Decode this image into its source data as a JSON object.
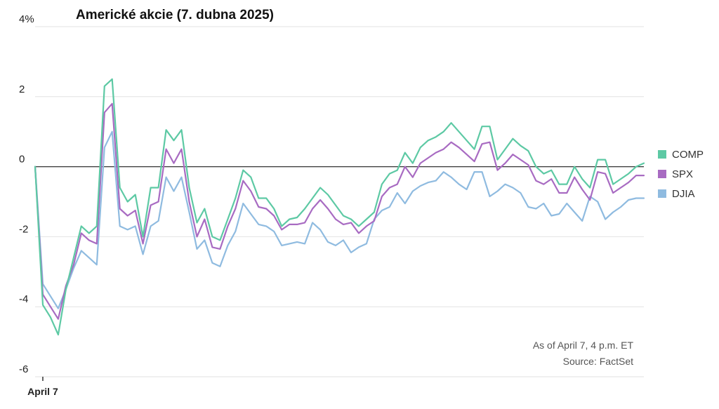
{
  "chart_data": {
    "type": "line",
    "title": "Americké akcie (7. dubna 2025)",
    "ylim": [
      -6,
      4
    ],
    "yticks": [
      4,
      2,
      0,
      -2,
      -4,
      -6
    ],
    "ytick_labels": [
      "4%",
      "2",
      "0",
      "-2",
      "-4",
      "-6"
    ],
    "x_label_text": "April 7",
    "x_label_index": 1,
    "grid": true,
    "legend": "right",
    "zero_line": true,
    "series": [
      {
        "name": "COMP",
        "color": "#5dc9a4",
        "values": [
          0,
          -3.95,
          -4.3,
          -4.8,
          -3.5,
          -2.6,
          -1.7,
          -1.9,
          -1.7,
          2.3,
          2.5,
          -0.6,
          -1.0,
          -0.8,
          -2.0,
          -0.6,
          -0.6,
          1.05,
          0.75,
          1.05,
          -0.6,
          -1.6,
          -1.2,
          -2.0,
          -2.1,
          -1.5,
          -0.9,
          -0.1,
          -0.3,
          -0.9,
          -0.9,
          -1.2,
          -1.7,
          -1.5,
          -1.45,
          -1.2,
          -0.9,
          -0.6,
          -0.8,
          -1.1,
          -1.4,
          -1.5,
          -1.7,
          -1.5,
          -1.3,
          -0.5,
          -0.2,
          -0.1,
          0.4,
          0.1,
          0.55,
          0.75,
          0.85,
          1.0,
          1.25,
          1.0,
          0.75,
          0.5,
          1.15,
          1.15,
          0.2,
          0.5,
          0.8,
          0.6,
          0.45,
          0.0,
          -0.2,
          -0.1,
          -0.5,
          -0.5,
          0.0,
          -0.35,
          -0.6,
          0.2,
          0.2,
          -0.5,
          -0.35,
          -0.2,
          0.0,
          0.1
        ]
      },
      {
        "name": "SPX",
        "color": "#a86bc2",
        "values": [
          0,
          -3.65,
          -4.0,
          -4.35,
          -3.4,
          -2.8,
          -1.9,
          -2.1,
          -2.2,
          1.55,
          1.8,
          -1.2,
          -1.4,
          -1.25,
          -2.2,
          -1.1,
          -1.0,
          0.5,
          0.1,
          0.5,
          -1.0,
          -2.0,
          -1.5,
          -2.3,
          -2.35,
          -1.7,
          -1.2,
          -0.4,
          -0.7,
          -1.15,
          -1.2,
          -1.4,
          -1.8,
          -1.65,
          -1.65,
          -1.6,
          -1.2,
          -0.95,
          -1.2,
          -1.5,
          -1.65,
          -1.6,
          -1.9,
          -1.7,
          -1.55,
          -0.85,
          -0.6,
          -0.5,
          0.0,
          -0.3,
          0.1,
          0.25,
          0.4,
          0.5,
          0.7,
          0.55,
          0.35,
          0.15,
          0.65,
          0.7,
          -0.1,
          0.1,
          0.35,
          0.2,
          0.05,
          -0.4,
          -0.5,
          -0.35,
          -0.75,
          -0.75,
          -0.3,
          -0.65,
          -0.95,
          -0.15,
          -0.2,
          -0.75,
          -0.6,
          -0.45,
          -0.25,
          -0.25
        ]
      },
      {
        "name": "DJIA",
        "color": "#8fbbe0",
        "values": [
          0,
          -3.35,
          -3.7,
          -4.05,
          -3.5,
          -2.9,
          -2.4,
          -2.6,
          -2.8,
          0.55,
          1.0,
          -1.7,
          -1.8,
          -1.7,
          -2.5,
          -1.7,
          -1.55,
          -0.3,
          -0.7,
          -0.3,
          -1.3,
          -2.35,
          -2.1,
          -2.75,
          -2.85,
          -2.25,
          -1.85,
          -1.05,
          -1.35,
          -1.65,
          -1.7,
          -1.85,
          -2.25,
          -2.2,
          -2.15,
          -2.2,
          -1.6,
          -1.8,
          -2.15,
          -2.25,
          -2.1,
          -2.45,
          -2.3,
          -2.2,
          -1.5,
          -1.25,
          -1.15,
          -0.75,
          -1.05,
          -0.7,
          -0.55,
          -0.45,
          -0.4,
          -0.15,
          -0.3,
          -0.5,
          -0.65,
          -0.15,
          -0.15,
          -0.85,
          -0.7,
          -0.5,
          -0.6,
          -0.75,
          -1.15,
          -1.2,
          -1.05,
          -1.4,
          -1.35,
          -1.05,
          -1.3,
          -1.55,
          -0.85,
          -1.0,
          -1.5,
          -1.3,
          -1.15,
          -0.95,
          -0.9,
          -0.9
        ]
      }
    ]
  },
  "annotations": {
    "as_of": "As of April 7, 4 p.m. ET",
    "source": "Source: FactSet"
  }
}
